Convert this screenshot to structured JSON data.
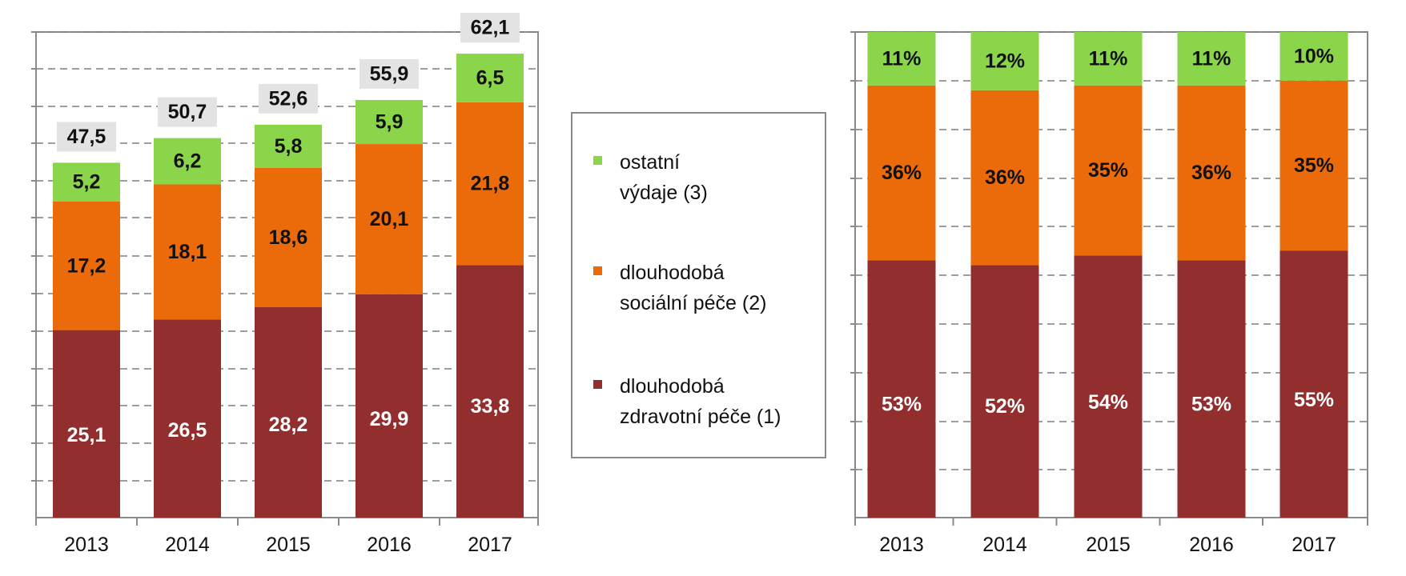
{
  "colors": {
    "health": "#922e2e",
    "social": "#eb6a0a",
    "other": "#8bd54a",
    "total_box": "#e3e3e3",
    "grid": "#7f7f7f",
    "axis": "#8a8a8a"
  },
  "legend": {
    "items": [
      {
        "key": "other",
        "lines": [
          "ostatní",
          "výdaje (3)"
        ]
      },
      {
        "key": "social",
        "lines": [
          "dlouhodobá",
          "sociální péče (2)"
        ]
      },
      {
        "key": "health",
        "lines": [
          "dlouhodobá",
          "zdravotní péče (1)"
        ]
      }
    ]
  },
  "chart_data": [
    {
      "type": "bar",
      "stacked": true,
      "categories": [
        "2013",
        "2014",
        "2015",
        "2016",
        "2017"
      ],
      "series": [
        {
          "key": "health",
          "name": "dlouhodobá zdravotní péče (1)",
          "values": [
            25.1,
            26.5,
            28.2,
            29.9,
            33.8
          ],
          "labels": [
            "25,1",
            "26,5",
            "28,2",
            "29,9",
            "33,8"
          ]
        },
        {
          "key": "social",
          "name": "dlouhodobá sociální péče (2)",
          "values": [
            17.2,
            18.1,
            18.6,
            20.1,
            21.8
          ],
          "labels": [
            "17,2",
            "18,1",
            "18,6",
            "20,1",
            "21,8"
          ]
        },
        {
          "key": "other",
          "name": "ostatní výdaje (3)",
          "values": [
            5.2,
            6.2,
            5.8,
            5.9,
            6.5
          ],
          "labels": [
            "5,2",
            "6,2",
            "5,8",
            "5,9",
            "6,5"
          ]
        }
      ],
      "totals": [
        "47,5",
        "50,7",
        "52,6",
        "55,9",
        "62,1"
      ],
      "ylim": [
        0,
        65
      ],
      "grid": true,
      "ytick_labels": false
    },
    {
      "type": "bar",
      "stacked": true,
      "percent": true,
      "categories": [
        "2013",
        "2014",
        "2015",
        "2016",
        "2017"
      ],
      "series": [
        {
          "key": "health",
          "name": "dlouhodobá zdravotní péče (1)",
          "values": [
            53,
            52,
            54,
            53,
            55
          ],
          "labels": [
            "53%",
            "52%",
            "54%",
            "53%",
            "55%"
          ]
        },
        {
          "key": "social",
          "name": "dlouhodobá sociální péče (2)",
          "values": [
            36,
            36,
            35,
            36,
            35
          ],
          "labels": [
            "36%",
            "36%",
            "35%",
            "36%",
            "35%"
          ]
        },
        {
          "key": "other",
          "name": "ostatní výdaje (3)",
          "values": [
            11,
            12,
            11,
            11,
            10
          ],
          "labels": [
            "11%",
            "12%",
            "11%",
            "11%",
            "10%"
          ]
        }
      ],
      "ylim": [
        0,
        100
      ],
      "grid": true,
      "ytick_labels": false
    }
  ]
}
